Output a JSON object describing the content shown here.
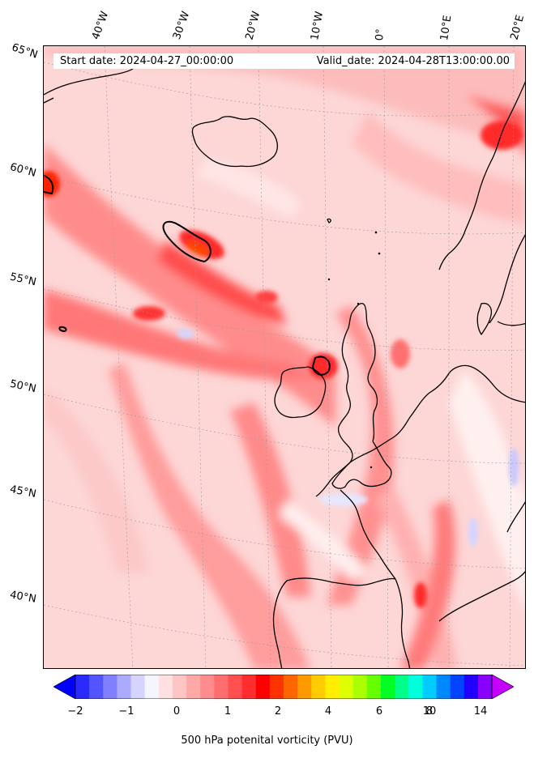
{
  "map": {
    "start_date": "Start date: 2024-04-27_00:00:00",
    "valid_date": "Valid_date: 2024-04-28T13:00:00.00",
    "lon_labels": [
      "40°W",
      "30°W",
      "20°W",
      "10°W",
      "0°",
      "10°E",
      "20°E"
    ],
    "lat_labels": [
      "65°N",
      "60°N",
      "55°N",
      "50°N",
      "45°N",
      "40°N"
    ]
  },
  "colorbar": {
    "label": "500 hPa potenital vorticity (PVU)",
    "ticks": [
      "−2",
      "−1",
      "0",
      "1",
      "2",
      "4",
      "6",
      "8",
      "10",
      "14"
    ],
    "colors": [
      "#0000ff",
      "#2a2aff",
      "#5555ff",
      "#7f7fff",
      "#aaaaff",
      "#d4d4ff",
      "#f5f5ff",
      "#ffe0e0",
      "#ffc4c4",
      "#ffa8a8",
      "#ff8c8c",
      "#ff6e6e",
      "#ff4f4f",
      "#ff2d2d",
      "#ff0000",
      "#ff3300",
      "#ff6600",
      "#ff9900",
      "#ffcc00",
      "#ffee00",
      "#ddff00",
      "#aaff00",
      "#66ff00",
      "#00ff22",
      "#00ff88",
      "#00ffdd",
      "#00ccff",
      "#0088ff",
      "#0044ff",
      "#2200ff",
      "#8800ff",
      "#c400ff"
    ]
  }
}
